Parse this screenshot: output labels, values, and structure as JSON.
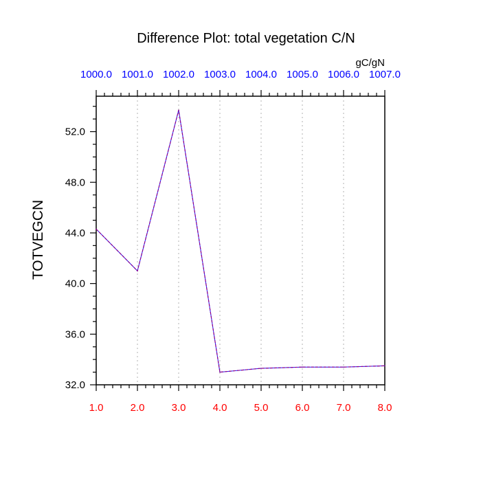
{
  "chart_data": {
    "type": "line",
    "title": "Difference Plot: total vegetation C/N",
    "units": "gC/gN",
    "ylabel": "TOTVEGCN",
    "xlabel": "",
    "x": [
      1,
      2,
      3,
      4,
      5,
      6,
      7,
      8
    ],
    "x_tick_labels": [
      "1.0",
      "2.0",
      "3.0",
      "4.0",
      "5.0",
      "6.0",
      "7.0",
      "8.0"
    ],
    "x_top_tick_labels": [
      "1000.0",
      "1001.0",
      "1002.0",
      "1003.0",
      "1004.0",
      "1005.0",
      "1006.0",
      "1007.0"
    ],
    "xlim": [
      1,
      8
    ],
    "ylim": [
      32,
      54.8
    ],
    "y_ticks": [
      32,
      36,
      40,
      44,
      48,
      52
    ],
    "y_tick_labels": [
      "32.0",
      "36.0",
      "40.0",
      "44.0",
      "48.0",
      "52.0"
    ],
    "grid": "vertical dotted",
    "series": [
      {
        "values": [
          44.3,
          41.0,
          53.7,
          33.0,
          33.3,
          33.4,
          33.4,
          33.5
        ],
        "color": "#8b008b",
        "style": "dashed"
      }
    ],
    "colors": {
      "bottom_ticks": "#ff0000",
      "top_ticks": "#0000ff",
      "line": "#8b008b",
      "grid": "#bfbfbf"
    }
  }
}
